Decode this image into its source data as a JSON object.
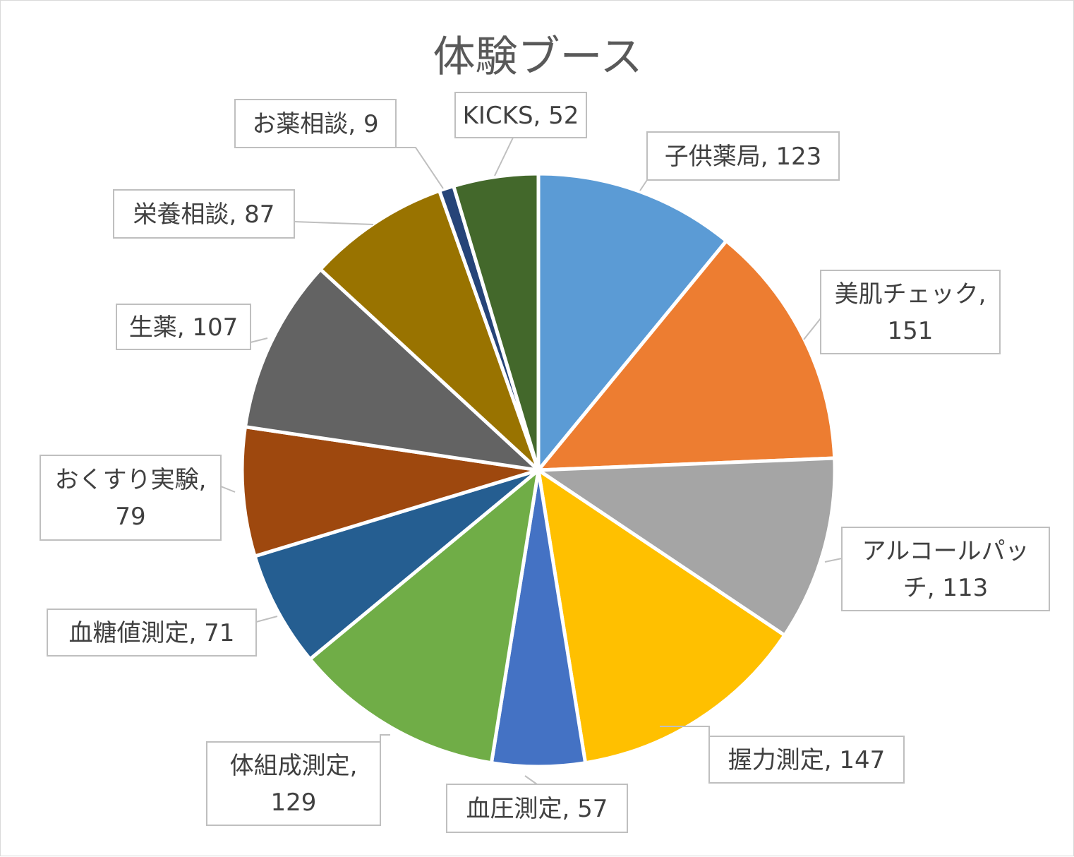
{
  "chart_data": {
    "type": "pie",
    "title": "体験ブース",
    "start_angle_deg": 0,
    "direction": "clockwise",
    "slices": [
      {
        "name": "子供薬局",
        "value": 123,
        "color": "#5B9BD5",
        "label_lines": [
          "子供薬局, 123"
        ]
      },
      {
        "name": "美肌チェック",
        "value": 151,
        "color": "#ED7D31",
        "label_lines": [
          "美肌チェック,",
          "151"
        ]
      },
      {
        "name": "アルコールパッチ",
        "value": 113,
        "color": "#A5A5A5",
        "label_lines": [
          "アルコールパッ",
          "チ, 113"
        ]
      },
      {
        "name": "握力測定",
        "value": 147,
        "color": "#FFC000",
        "label_lines": [
          "握力測定, 147"
        ]
      },
      {
        "name": "血圧測定",
        "value": 57,
        "color": "#4472C4",
        "label_lines": [
          "血圧測定, 57"
        ]
      },
      {
        "name": "体組成測定",
        "value": 129,
        "color": "#70AD47",
        "label_lines": [
          "体組成測定,",
          "129"
        ]
      },
      {
        "name": "血糖値測定",
        "value": 71,
        "color": "#255E91",
        "label_lines": [
          "血糖値測定, 71"
        ]
      },
      {
        "name": "おくすり実験",
        "value": 79,
        "color": "#9E480E",
        "label_lines": [
          "おくすり実験,",
          "79"
        ]
      },
      {
        "name": "生薬",
        "value": 107,
        "color": "#636363",
        "label_lines": [
          "生薬, 107"
        ]
      },
      {
        "name": "栄養相談",
        "value": 87,
        "color": "#997300",
        "label_lines": [
          "栄養相談, 87"
        ]
      },
      {
        "name": "お薬相談",
        "value": 9,
        "color": "#264478",
        "label_lines": [
          "お薬相談, 9"
        ]
      },
      {
        "name": "KICKS",
        "value": 52,
        "color": "#43682B",
        "label_lines": [
          "KICKS, 52"
        ]
      }
    ],
    "legend": "none"
  }
}
